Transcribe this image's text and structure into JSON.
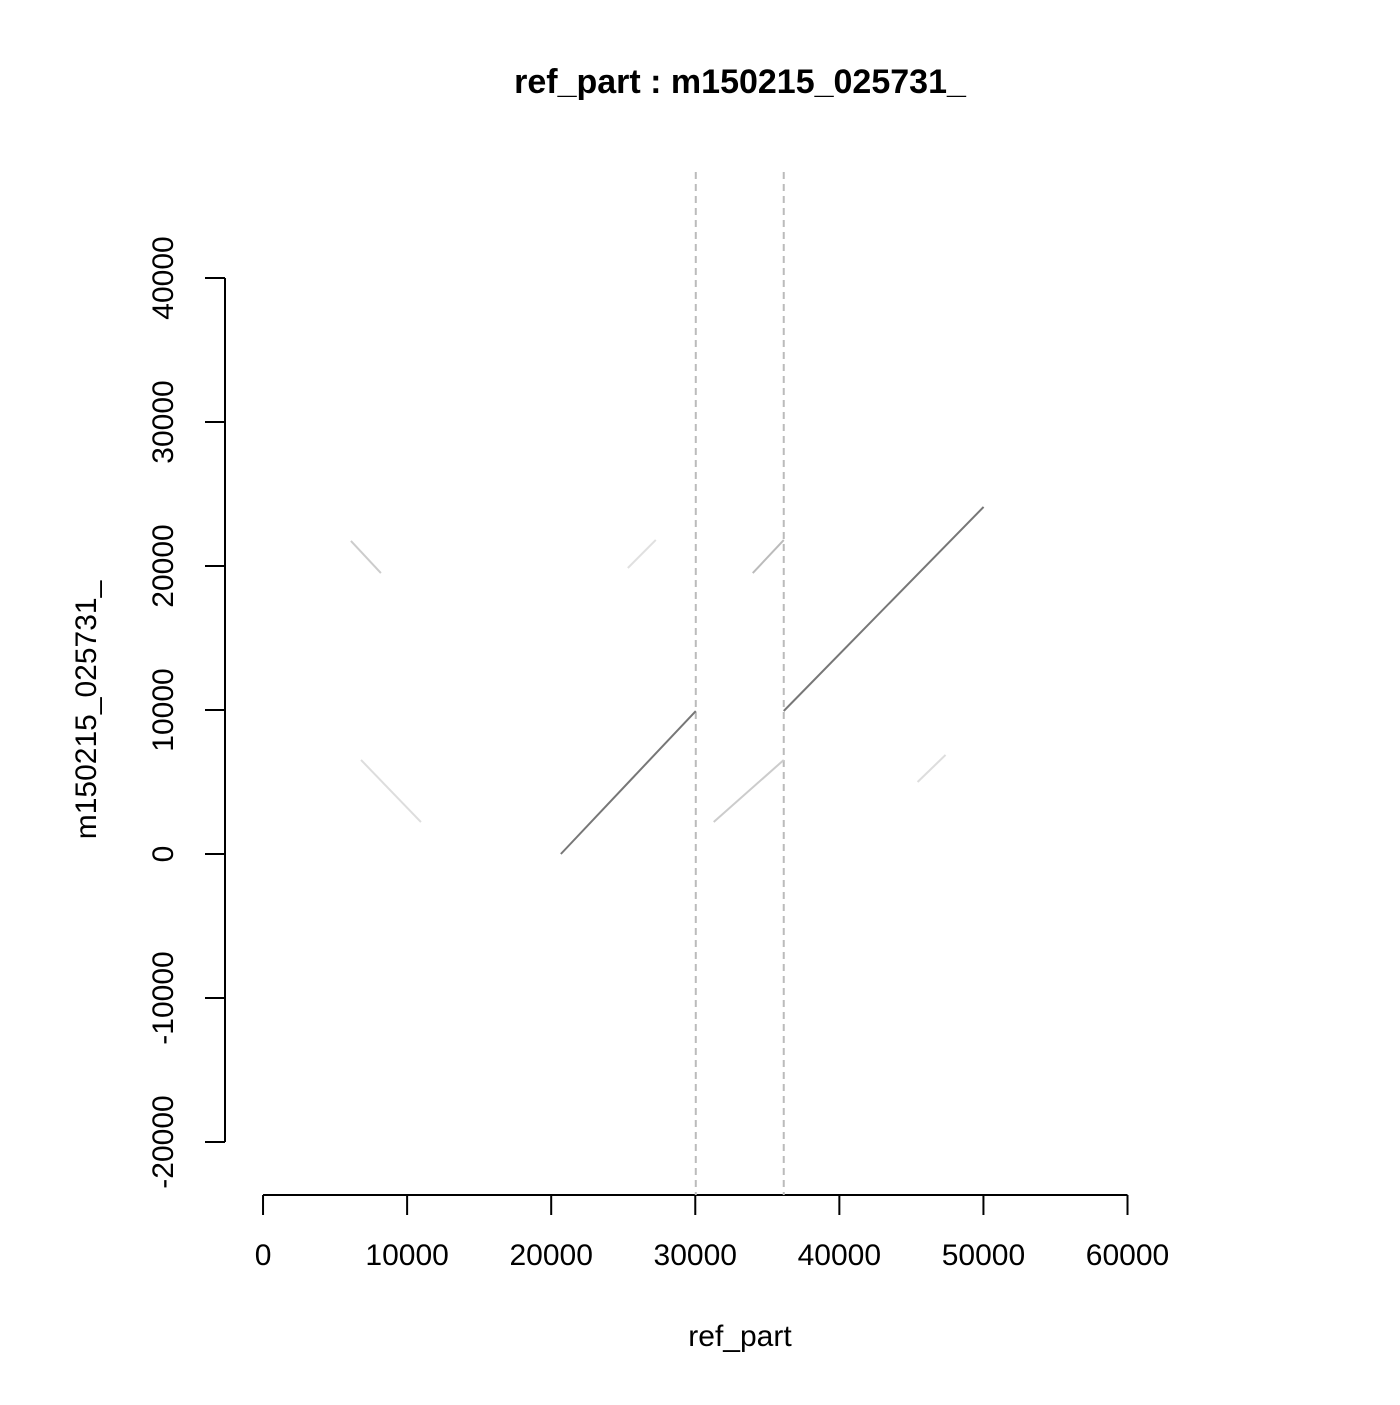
{
  "chart_data": {
    "type": "line",
    "title": "ref_part : m150215_025731_",
    "x_label": "ref_part",
    "y_label": "m150215_025731_",
    "xlim": [
      -2640,
      68640
    ],
    "ylim": [
      -23680,
      47360
    ],
    "xticks": [
      0,
      10000,
      20000,
      30000,
      40000,
      50000,
      60000
    ],
    "yticks": [
      -20000,
      -10000,
      0,
      10000,
      20000,
      30000,
      40000
    ],
    "vlines": [
      30035,
      36140
    ],
    "vline_color": "#bbbbbb",
    "series": [
      {
        "color": "#777777",
        "x": [
          20670,
          30035
        ],
        "values": [
          0,
          9930
        ]
      },
      {
        "color": "#777777",
        "x": [
          36140,
          50010
        ],
        "values": [
          9930,
          24100
        ]
      },
      {
        "color": "#bbbbbb",
        "x": [
          33990,
          36140
        ],
        "values": [
          19510,
          21800
        ]
      },
      {
        "color": "#cccccc",
        "x": [
          31280,
          36140
        ],
        "values": [
          2220,
          6530
        ]
      },
      {
        "color": "#cccccc",
        "x": [
          6100,
          8180
        ],
        "values": [
          21740,
          19510
        ]
      },
      {
        "color": "#dddddd",
        "x": [
          6800,
          10960
        ],
        "values": [
          6530,
          2220
        ]
      },
      {
        "color": "#dddddd",
        "x": [
          45430,
          47370
        ],
        "values": [
          5000,
          6880
        ]
      },
      {
        "color": "#e0e0e0",
        "x": [
          25320,
          27260
        ],
        "values": [
          19860,
          21810
        ]
      }
    ]
  }
}
